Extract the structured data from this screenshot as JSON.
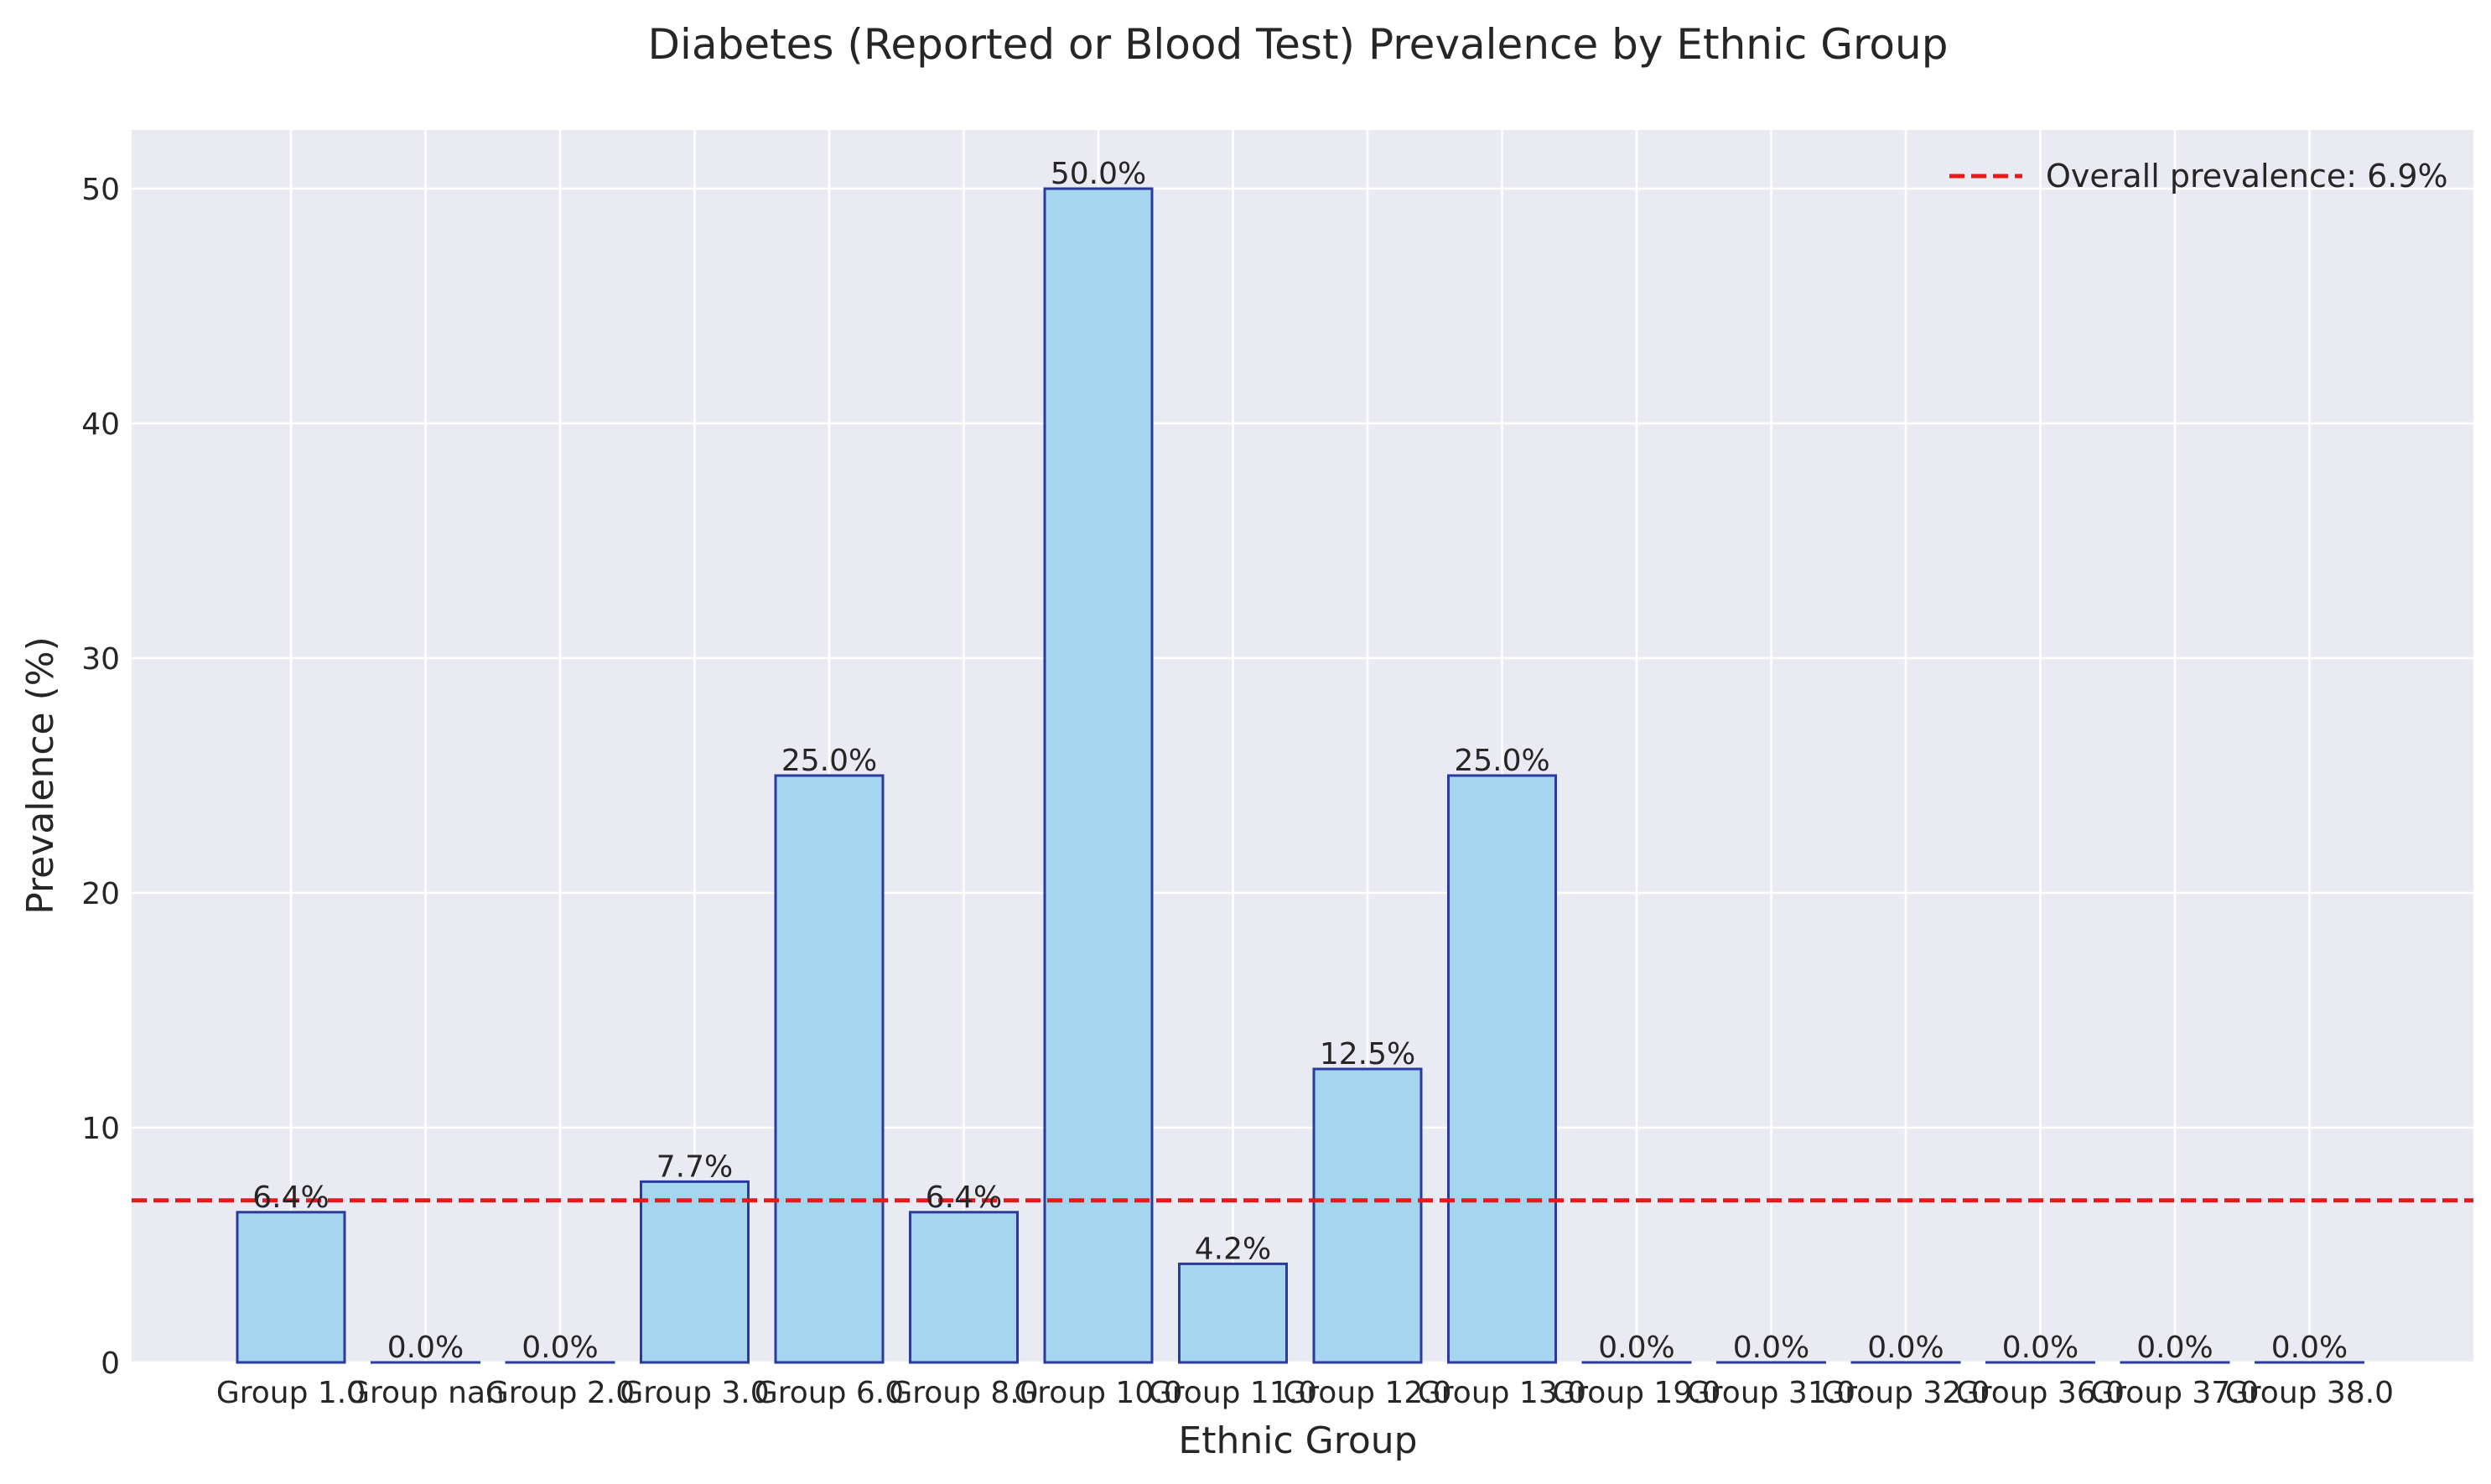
{
  "chart_data": {
    "type": "bar",
    "title": "Diabetes (Reported or Blood Test) Prevalence by Ethnic Group",
    "xlabel": "Ethnic Group",
    "ylabel": "Prevalence (%)",
    "categories": [
      "Group 1.0",
      "Group nan",
      "Group 2.0",
      "Group 3.0",
      "Group 6.0",
      "Group 8.0",
      "Group 10.0",
      "Group 11.0",
      "Group 12.0",
      "Group 13.0",
      "Group 19.0",
      "Group 31.0",
      "Group 32.0",
      "Group 36.0",
      "Group 37.0",
      "Group 38.0"
    ],
    "values": [
      6.4,
      0.0,
      0.0,
      7.7,
      25.0,
      6.4,
      50.0,
      4.2,
      12.5,
      25.0,
      0.0,
      0.0,
      0.0,
      0.0,
      0.0,
      0.0
    ],
    "value_labels": [
      "6.4%",
      "0.0%",
      "0.0%",
      "7.7%",
      "25.0%",
      "6.4%",
      "50.0%",
      "4.2%",
      "12.5%",
      "25.0%",
      "0.0%",
      "0.0%",
      "0.0%",
      "0.0%",
      "0.0%",
      "0.0%"
    ],
    "ylim": [
      0,
      52.5
    ],
    "yticks": [
      0,
      10,
      20,
      30,
      40,
      50
    ],
    "ytick_labels": [
      "0",
      "10",
      "20",
      "30",
      "40",
      "50"
    ],
    "reference_line": {
      "value": 6.9,
      "label": "Overall prevalence: 6.9%",
      "style": "dashed",
      "color": "#e41a1c"
    },
    "legend_placement": "top-right",
    "grid": true,
    "colors": {
      "bar_fill": "#a6d6ef",
      "bar_edge": "#2b3a9b",
      "background": "#eaeaf2",
      "grid": "#ffffff",
      "reference": "#e41a1c"
    }
  }
}
